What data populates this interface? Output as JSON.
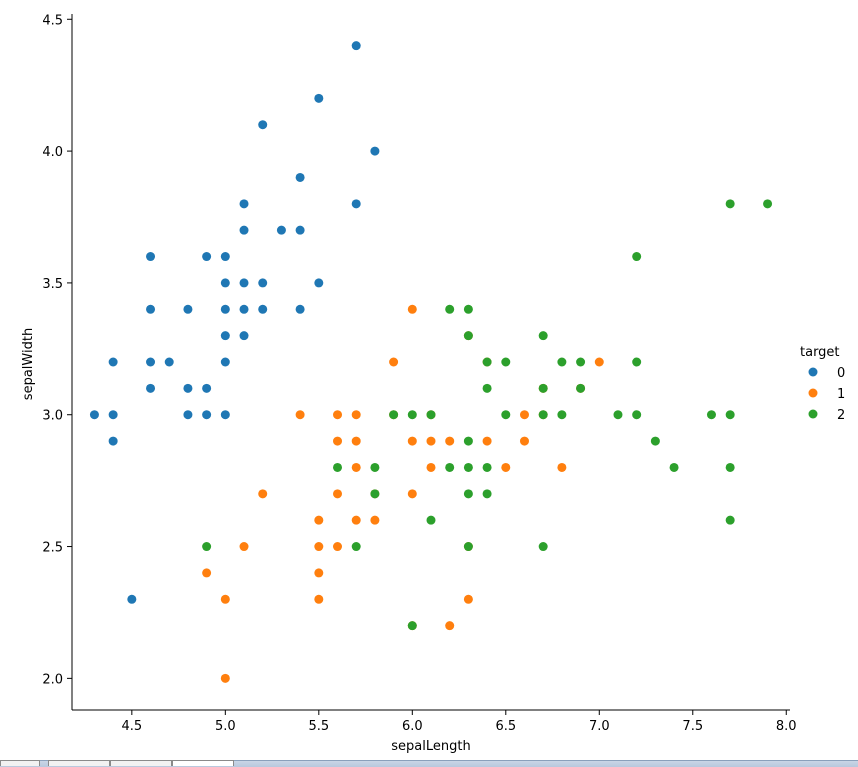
{
  "chart_data": {
    "type": "scatter",
    "xlabel": "sepalLength",
    "ylabel": "sepalWidth",
    "xlim": [
      4.18,
      8.02
    ],
    "ylim": [
      1.88,
      4.52
    ],
    "xticks": [
      "4.5",
      "5.0",
      "5.5",
      "6.0",
      "6.5",
      "7.0",
      "7.5",
      "8.0"
    ],
    "yticks": [
      "2.0",
      "2.5",
      "3.0",
      "3.5",
      "4.0",
      "4.5"
    ],
    "legend": {
      "title": "target",
      "placement": "right"
    },
    "series": [
      {
        "name": "0",
        "color": "#1f77b4",
        "points": [
          [
            4.3,
            3.0
          ],
          [
            4.4,
            3.0
          ],
          [
            4.4,
            2.9
          ],
          [
            4.4,
            3.2
          ],
          [
            4.5,
            2.3
          ],
          [
            4.6,
            3.1
          ],
          [
            4.6,
            3.2
          ],
          [
            4.6,
            3.4
          ],
          [
            4.6,
            3.6
          ],
          [
            4.7,
            3.2
          ],
          [
            4.8,
            3.0
          ],
          [
            4.8,
            3.1
          ],
          [
            4.8,
            3.4
          ],
          [
            4.9,
            3.0
          ],
          [
            4.9,
            3.1
          ],
          [
            4.9,
            3.6
          ],
          [
            5.0,
            3.0
          ],
          [
            5.0,
            3.2
          ],
          [
            5.0,
            3.3
          ],
          [
            5.0,
            3.4
          ],
          [
            5.0,
            3.5
          ],
          [
            5.0,
            3.6
          ],
          [
            5.1,
            3.3
          ],
          [
            5.1,
            3.4
          ],
          [
            5.1,
            3.5
          ],
          [
            5.1,
            3.7
          ],
          [
            5.1,
            3.8
          ],
          [
            5.2,
            3.4
          ],
          [
            5.2,
            3.5
          ],
          [
            5.2,
            4.1
          ],
          [
            5.3,
            3.7
          ],
          [
            5.4,
            3.4
          ],
          [
            5.4,
            3.7
          ],
          [
            5.4,
            3.9
          ],
          [
            5.5,
            3.5
          ],
          [
            5.5,
            4.2
          ],
          [
            5.7,
            3.8
          ],
          [
            5.7,
            4.4
          ],
          [
            5.8,
            4.0
          ]
        ]
      },
      {
        "name": "1",
        "color": "#ff7f0e",
        "points": [
          [
            4.9,
            2.4
          ],
          [
            5.0,
            2.0
          ],
          [
            5.0,
            2.3
          ],
          [
            5.1,
            2.5
          ],
          [
            5.2,
            2.7
          ],
          [
            5.4,
            3.0
          ],
          [
            5.5,
            2.3
          ],
          [
            5.5,
            2.4
          ],
          [
            5.5,
            2.5
          ],
          [
            5.5,
            2.6
          ],
          [
            5.6,
            2.5
          ],
          [
            5.6,
            2.7
          ],
          [
            5.6,
            2.9
          ],
          [
            5.6,
            3.0
          ],
          [
            5.7,
            2.6
          ],
          [
            5.7,
            2.8
          ],
          [
            5.7,
            2.9
          ],
          [
            5.7,
            3.0
          ],
          [
            5.8,
            2.6
          ],
          [
            5.8,
            2.7
          ],
          [
            5.9,
            3.0
          ],
          [
            5.9,
            3.2
          ],
          [
            6.0,
            2.2
          ],
          [
            6.0,
            2.7
          ],
          [
            6.0,
            2.9
          ],
          [
            6.0,
            3.4
          ],
          [
            6.1,
            2.8
          ],
          [
            6.1,
            2.9
          ],
          [
            6.1,
            3.0
          ],
          [
            6.2,
            2.2
          ],
          [
            6.2,
            2.9
          ],
          [
            6.3,
            2.3
          ],
          [
            6.3,
            2.5
          ],
          [
            6.3,
            3.3
          ],
          [
            6.4,
            2.9
          ],
          [
            6.4,
            3.2
          ],
          [
            6.5,
            2.8
          ],
          [
            6.6,
            2.9
          ],
          [
            6.6,
            3.0
          ],
          [
            6.7,
            3.0
          ],
          [
            6.7,
            3.1
          ],
          [
            6.8,
            2.8
          ],
          [
            6.9,
            3.1
          ],
          [
            7.0,
            3.2
          ]
        ]
      },
      {
        "name": "2",
        "color": "#2ca02c",
        "points": [
          [
            4.9,
            2.5
          ],
          [
            5.6,
            2.8
          ],
          [
            5.7,
            2.5
          ],
          [
            5.8,
            2.7
          ],
          [
            5.8,
            2.8
          ],
          [
            5.9,
            3.0
          ],
          [
            6.0,
            2.2
          ],
          [
            6.0,
            3.0
          ],
          [
            6.1,
            2.6
          ],
          [
            6.1,
            3.0
          ],
          [
            6.2,
            2.8
          ],
          [
            6.2,
            3.4
          ],
          [
            6.3,
            2.5
          ],
          [
            6.3,
            2.7
          ],
          [
            6.3,
            2.8
          ],
          [
            6.3,
            2.9
          ],
          [
            6.3,
            3.3
          ],
          [
            6.3,
            3.4
          ],
          [
            6.4,
            2.7
          ],
          [
            6.4,
            2.8
          ],
          [
            6.4,
            3.1
          ],
          [
            6.4,
            3.2
          ],
          [
            6.5,
            3.0
          ],
          [
            6.5,
            3.2
          ],
          [
            6.7,
            2.5
          ],
          [
            6.7,
            3.0
          ],
          [
            6.7,
            3.1
          ],
          [
            6.7,
            3.3
          ],
          [
            6.8,
            3.0
          ],
          [
            6.8,
            3.2
          ],
          [
            6.9,
            3.1
          ],
          [
            6.9,
            3.2
          ],
          [
            7.1,
            3.0
          ],
          [
            7.2,
            3.0
          ],
          [
            7.2,
            3.2
          ],
          [
            7.2,
            3.6
          ],
          [
            7.3,
            2.9
          ],
          [
            7.4,
            2.8
          ],
          [
            7.6,
            3.0
          ],
          [
            7.7,
            2.6
          ],
          [
            7.7,
            2.8
          ],
          [
            7.7,
            3.0
          ],
          [
            7.7,
            3.8
          ],
          [
            7.9,
            3.8
          ]
        ]
      }
    ]
  }
}
